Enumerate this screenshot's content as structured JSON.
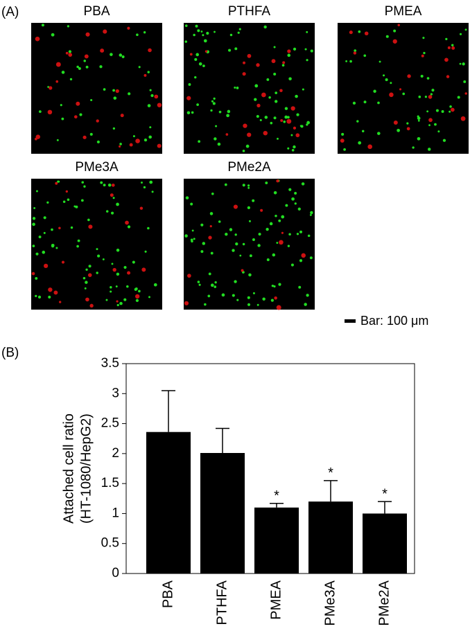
{
  "panel_a": {
    "label": "(A)",
    "images": [
      {
        "title": "PBA"
      },
      {
        "title": "PTHFA"
      },
      {
        "title": "PMEA"
      },
      {
        "title": "PMe3A"
      },
      {
        "title": "PMe2A"
      }
    ],
    "scale_bar": "Bar: 100 μm"
  },
  "chart_data": {
    "type": "bar",
    "panel_label": "(B)",
    "ylabel_lines": [
      "Attached cell ratio",
      "(HT-1080/HepG2)"
    ],
    "categories": [
      "PBA",
      "PTHFA",
      "PMEA",
      "PMe3A",
      "PMe2A"
    ],
    "values": [
      2.36,
      2.01,
      1.1,
      1.2,
      1.0
    ],
    "errors": [
      0.69,
      0.41,
      0.07,
      0.35,
      0.2
    ],
    "annotations": [
      null,
      null,
      "*",
      "*",
      "*"
    ],
    "color": "#000000",
    "ylim": [
      0,
      3.5
    ],
    "yticks": [
      0,
      0.5,
      1,
      1.5,
      2,
      2.5,
      3,
      3.5
    ]
  }
}
